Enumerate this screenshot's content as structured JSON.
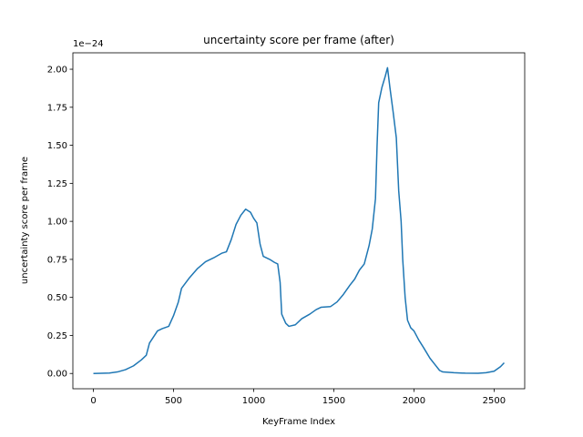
{
  "chart_data": {
    "type": "line",
    "title": "uncertainty score per frame (after)",
    "xlabel": "KeyFrame Index",
    "ylabel": "uncertainty score per frame",
    "y_offset_label": "1e−24",
    "color": "#1f77b4",
    "x": [
      0,
      100,
      150,
      200,
      250,
      300,
      330,
      350,
      400,
      430,
      470,
      500,
      530,
      550,
      600,
      650,
      700,
      750,
      800,
      830,
      860,
      890,
      920,
      950,
      980,
      1000,
      1020,
      1040,
      1060,
      1100,
      1130,
      1150,
      1165,
      1175,
      1200,
      1220,
      1260,
      1300,
      1350,
      1390,
      1420,
      1480,
      1520,
      1560,
      1600,
      1630,
      1660,
      1690,
      1720,
      1740,
      1760,
      1770,
      1780,
      1800,
      1820,
      1835,
      1850,
      1870,
      1890,
      1905,
      1920,
      1930,
      1945,
      1960,
      1980,
      2000,
      2030,
      2060,
      2100,
      2130,
      2160,
      2180,
      2250,
      2320,
      2400,
      2450,
      2500,
      2540,
      2563
    ],
    "values": [
      0,
      0.003,
      0.01,
      0.025,
      0.05,
      0.09,
      0.12,
      0.2,
      0.28,
      0.295,
      0.31,
      0.38,
      0.47,
      0.56,
      0.63,
      0.69,
      0.735,
      0.76,
      0.79,
      0.8,
      0.88,
      0.98,
      1.04,
      1.08,
      1.06,
      1.02,
      0.99,
      0.85,
      0.77,
      0.75,
      0.73,
      0.72,
      0.6,
      0.39,
      0.33,
      0.31,
      0.32,
      0.36,
      0.39,
      0.42,
      0.435,
      0.44,
      0.47,
      0.52,
      0.58,
      0.62,
      0.68,
      0.72,
      0.84,
      0.95,
      1.15,
      1.5,
      1.78,
      1.88,
      1.95,
      2.01,
      1.88,
      1.72,
      1.55,
      1.2,
      1.0,
      0.75,
      0.5,
      0.35,
      0.3,
      0.28,
      0.22,
      0.17,
      0.1,
      0.06,
      0.02,
      0.01,
      0.005,
      0.002,
      0.001,
      0.005,
      0.015,
      0.045,
      0.07
    ],
    "xlim": [
      -128,
      2691
    ],
    "ylim": [
      -0.1004,
      2.108
    ],
    "xticks": [
      0,
      500,
      1000,
      1500,
      2000,
      2500
    ],
    "yticks": [
      {
        "value": 0,
        "label": "0.00"
      },
      {
        "value": 0.25,
        "label": "0.25"
      },
      {
        "value": 0.5,
        "label": "0.50"
      },
      {
        "value": 0.75,
        "label": "0.75"
      },
      {
        "value": 1,
        "label": "1.00"
      },
      {
        "value": 1.25,
        "label": "1.25"
      },
      {
        "value": 1.5,
        "label": "1.50"
      },
      {
        "value": 1.75,
        "label": "1.75"
      },
      {
        "value": 2,
        "label": "2.00"
      }
    ]
  }
}
